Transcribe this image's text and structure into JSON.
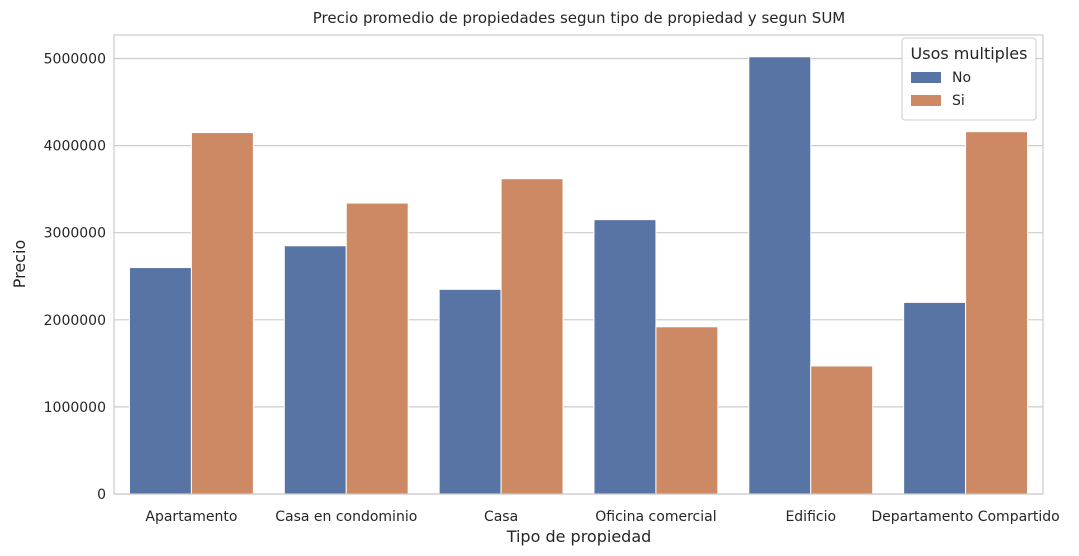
{
  "chart_data": {
    "type": "bar",
    "title": "Precio promedio de propiedades segun tipo de propiedad y segun SUM",
    "xlabel": "Tipo de propiedad",
    "ylabel": "Precio",
    "categories": [
      "Apartamento",
      "Casa en condominio",
      "Casa",
      "Oficina comercial",
      "Edificio",
      "Departamento Compartido"
    ],
    "series": [
      {
        "name": "No",
        "color": "#5874a4",
        "values": [
          2600000,
          2850000,
          2350000,
          3150000,
          5020000,
          2200000
        ]
      },
      {
        "name": "Si",
        "color": "#cc8963",
        "values": [
          4150000,
          3340000,
          3620000,
          1920000,
          1470000,
          4160000
        ]
      }
    ],
    "yticks": [
      0,
      1000000,
      2000000,
      3000000,
      4000000,
      5000000
    ],
    "ytick_labels": [
      "0",
      "1000000",
      "2000000",
      "3000000",
      "4000000",
      "5000000"
    ],
    "ylim": [
      0,
      5270000
    ],
    "legend": {
      "title": "Usos multiples",
      "position": "top-right"
    },
    "grid": "y"
  }
}
